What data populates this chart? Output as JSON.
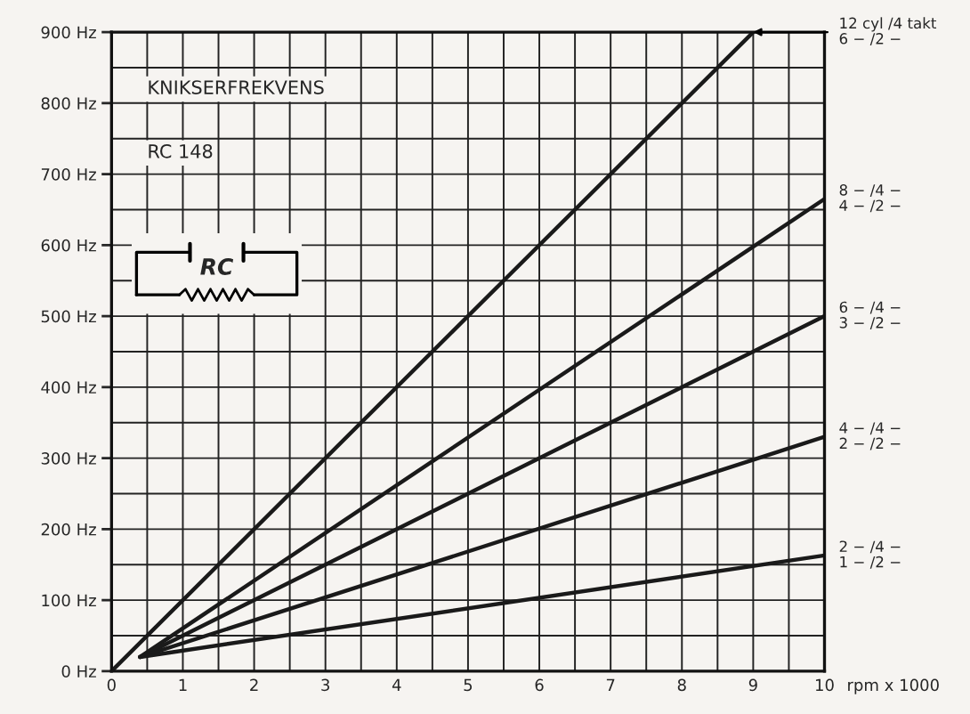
{
  "chart_data": {
    "type": "line",
    "title": "KNIKSERFREKVENS",
    "subtitle": "RC 148",
    "xlabel": "rpm x 1000",
    "xlim": [
      0,
      10
    ],
    "ylim": [
      0,
      900
    ],
    "xticks": [
      0,
      {
        "value": 0.5,
        "label": null
      },
      1,
      {
        "value": 1.5,
        "label": null
      },
      2,
      {
        "value": 2.5,
        "label": null
      },
      3,
      {
        "value": 3.5,
        "label": null
      },
      4,
      {
        "value": 4.5,
        "label": null
      },
      5,
      {
        "value": 5.5,
        "label": null
      },
      6,
      {
        "value": 6.5,
        "label": null
      },
      7,
      {
        "value": 7.5,
        "label": null
      },
      8,
      {
        "value": 8.5,
        "label": null
      },
      9,
      {
        "value": 9.5,
        "label": null
      },
      10
    ],
    "yticks": [
      {
        "value": 0,
        "label": "0 Hz"
      },
      {
        "value": 50,
        "label": null
      },
      {
        "value": 100,
        "label": "100 Hz"
      },
      {
        "value": 150,
        "label": null
      },
      {
        "value": 200,
        "label": "200 Hz"
      },
      {
        "value": 250,
        "label": null
      },
      {
        "value": 300,
        "label": "300 Hz"
      },
      {
        "value": 350,
        "label": null
      },
      {
        "value": 400,
        "label": "400 Hz"
      },
      {
        "value": 450,
        "label": null
      },
      {
        "value": 500,
        "label": "500 Hz"
      },
      {
        "value": 550,
        "label": null
      },
      {
        "value": 600,
        "label": "600 Hz"
      },
      {
        "value": 650,
        "label": null
      },
      {
        "value": 700,
        "label": "700 Hz"
      },
      {
        "value": 750,
        "label": null
      },
      {
        "value": 800,
        "label": "800 Hz"
      },
      {
        "value": 850,
        "label": null
      },
      {
        "value": 900,
        "label": "900 Hz"
      }
    ],
    "grid": true,
    "marker": "none",
    "line_style": "solid",
    "series": [
      {
        "color": "#1a1a1a",
        "x": [
          0,
          9
        ],
        "values": [
          0,
          900
        ]
      },
      {
        "color": "#1a1a1a",
        "x": [
          0.4,
          10
        ],
        "values": [
          20,
          665
        ]
      },
      {
        "color": "#1a1a1a",
        "x": [
          0.4,
          10
        ],
        "values": [
          20,
          500
        ]
      },
      {
        "color": "#1a1a1a",
        "x": [
          0.4,
          10
        ],
        "values": [
          20,
          330
        ]
      },
      {
        "color": "#1a1a1a",
        "x": [
          0.4,
          10
        ],
        "values": [
          20,
          163
        ]
      }
    ],
    "annotations": [
      {
        "text": "12 cyl /4 takt\n6 − /2 −",
        "x": 9,
        "y": 900
      },
      "8 − /4 −\n4 − /2 −",
      "6 − /4 −\n3 − /2 −",
      "4 − /4 −\n2 − /2 −",
      "2 − /4 −\n1 − /2 −",
      "RC"
    ]
  }
}
